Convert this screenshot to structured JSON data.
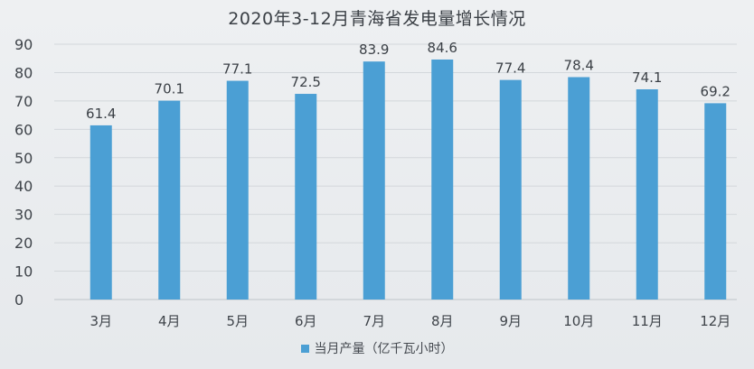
{
  "chart_data": {
    "type": "bar",
    "title": "2020年3-12月青海省发电量增长情况",
    "categories": [
      "3月",
      "4月",
      "5月",
      "6月",
      "7月",
      "8月",
      "9月",
      "10月",
      "11月",
      "12月"
    ],
    "series": [
      {
        "name": "当月产量（亿千瓦小时）",
        "values": [
          61.4,
          70.1,
          77.1,
          72.5,
          83.9,
          84.6,
          77.4,
          78.4,
          74.1,
          69.2
        ],
        "color": "#4b9fd4"
      }
    ],
    "yticks": [
      "0",
      "10",
      "20",
      "30",
      "40",
      "50",
      "60",
      "70",
      "80",
      "90"
    ],
    "ylim": [
      0,
      90
    ],
    "xlabel": "",
    "ylabel": "",
    "grid": true,
    "legend_position": "bottom-center",
    "data_labels": [
      "61.4",
      "70.1",
      "77.1",
      "72.5",
      "83.9",
      "84.6",
      "77.4",
      "78.4",
      "74.1",
      "69.2"
    ]
  }
}
